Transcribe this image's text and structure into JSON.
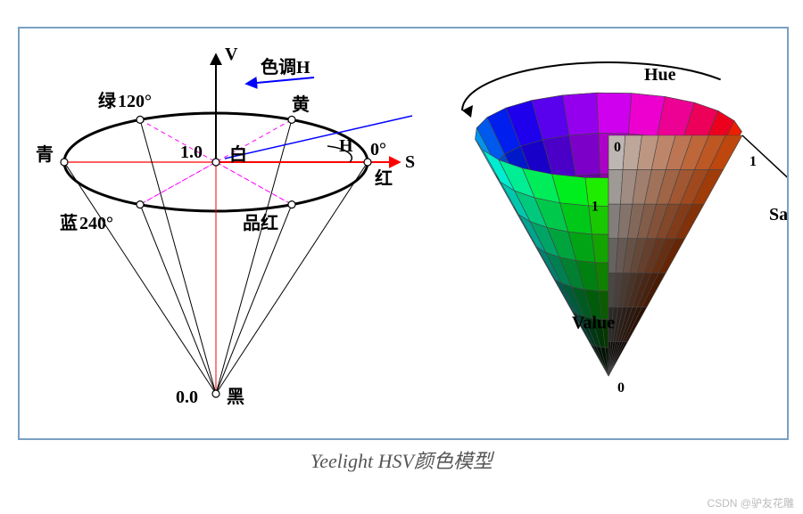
{
  "caption": "Yeelight HSV颜色模型",
  "watermark": "CSDN @驴友花雕",
  "frame_border_color": "#7aa0c4",
  "left_diagram": {
    "title_fontsize": 20,
    "axis_V_label": "V",
    "axis_S_label": "S",
    "axis_H_label": "H",
    "hue_annotation": "色调",
    "hue_annotation_suffix": "H",
    "center_label": "白",
    "center_value": "1.0",
    "apex_label": "黑",
    "apex_value": "0.0",
    "hue_points": [
      {
        "name": "红",
        "angle": "0°",
        "color": "#ff0000"
      },
      {
        "name": "黄",
        "angle": "",
        "color": "#ffff00"
      },
      {
        "name": "绿",
        "angle": "120°",
        "color": "#00ff00"
      },
      {
        "name": "青",
        "angle": "",
        "color": "#00ffff"
      },
      {
        "name": "蓝",
        "angle": "240°",
        "color": "#0000ff"
      },
      {
        "name": "品红",
        "angle": "",
        "color": "#ff00ff"
      }
    ],
    "ellipse_stroke": "#000000",
    "ellipse_stroke_width": 3,
    "cone_line_stroke": "#000000",
    "cone_line_width": 1,
    "axis_color_V": "#000000",
    "axis_color_S": "#ff0000",
    "diag_line_color_1": "#ff0000",
    "diag_line_color_2": "#ff00ff",
    "diag_line_color_3": "#0000ff",
    "diag_line_dash": "4,3",
    "vertex_marker_radius": 4,
    "vertex_marker_fill": "#ffffff",
    "vertex_marker_stroke": "#000000"
  },
  "right_diagram": {
    "label_hue": "Hue",
    "label_saturation": "Saturation",
    "label_value": "Value",
    "tick_0": "0",
    "tick_1": "1",
    "radial_segments": 24,
    "rings": 8,
    "value_steps": 7,
    "hue_arrow_color": "#000000",
    "outline_color": "#444444",
    "outline_width": 0.6,
    "cutaway_face_color": "#999999",
    "label_fontsize": 20
  }
}
